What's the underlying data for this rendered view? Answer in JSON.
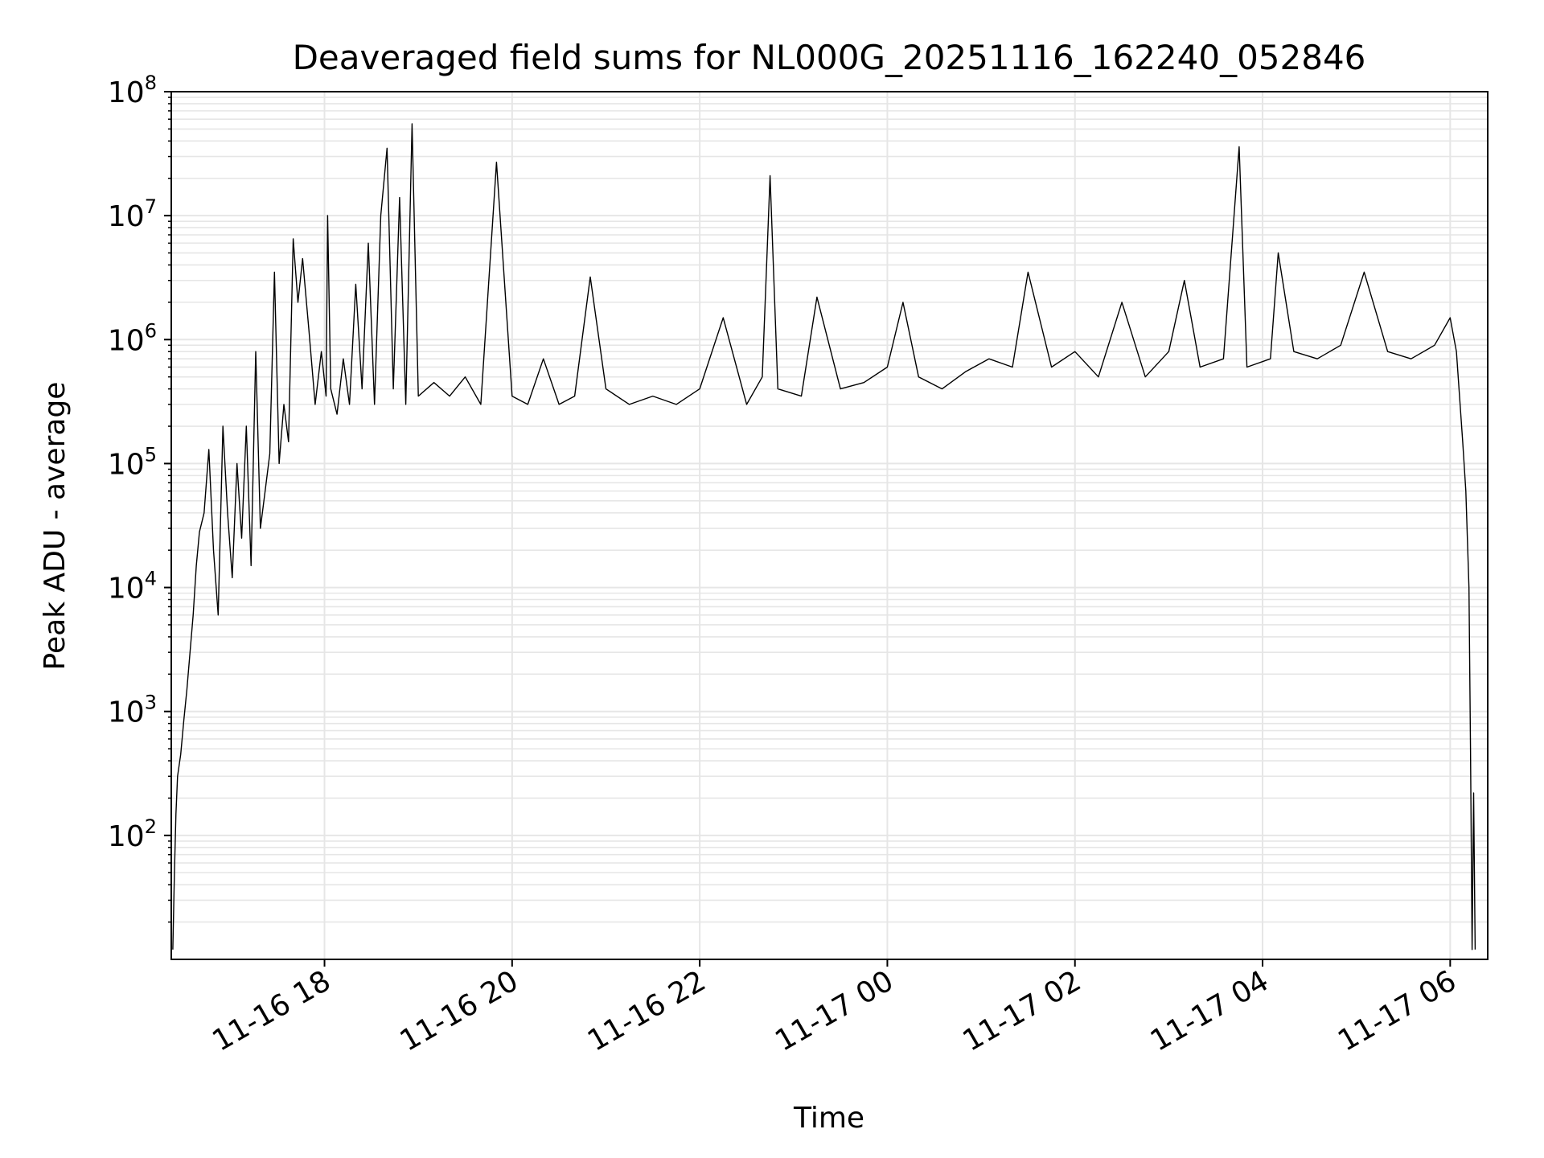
{
  "chart_data": {
    "type": "line",
    "title": "Deaveraged field sums for NL000G_20251116_162240_052846",
    "xlabel": "Time",
    "ylabel": "Peak ADU - average",
    "yscale": "log",
    "ylim": [
      10,
      100000000
    ],
    "xlim": [
      "2025-11-16 16:22",
      "2025-11-17 06:24"
    ],
    "grid": true,
    "x_ticks": [
      {
        "t": "2025-11-16 18:00",
        "label": "11-16 18"
      },
      {
        "t": "2025-11-16 20:00",
        "label": "11-16 20"
      },
      {
        "t": "2025-11-16 22:00",
        "label": "11-16 22"
      },
      {
        "t": "2025-11-17 00:00",
        "label": "11-17 00"
      },
      {
        "t": "2025-11-17 02:00",
        "label": "11-17 02"
      },
      {
        "t": "2025-11-17 04:00",
        "label": "11-17 04"
      },
      {
        "t": "2025-11-17 06:00",
        "label": "11-17 06"
      }
    ],
    "y_ticks": [
      {
        "value": 100,
        "base": "10",
        "exp": "2"
      },
      {
        "value": 1000,
        "base": "10",
        "exp": "3"
      },
      {
        "value": 10000,
        "base": "10",
        "exp": "4"
      },
      {
        "value": 100000,
        "base": "10",
        "exp": "5"
      },
      {
        "value": 1000000,
        "base": "10",
        "exp": "6"
      },
      {
        "value": 10000000,
        "base": "10",
        "exp": "7"
      },
      {
        "value": 100000000,
        "base": "10",
        "exp": "8"
      }
    ],
    "color": "#000000",
    "series": [
      {
        "points": [
          [
            "2025-11-16 16:23",
            12
          ],
          [
            "2025-11-16 16:24",
            50
          ],
          [
            "2025-11-16 16:25",
            150
          ],
          [
            "2025-11-16 16:26",
            300
          ],
          [
            "2025-11-16 16:28",
            450
          ],
          [
            "2025-11-16 16:30",
            850
          ],
          [
            "2025-11-16 16:32",
            1500
          ],
          [
            "2025-11-16 16:34",
            3000
          ],
          [
            "2025-11-16 16:36",
            6000
          ],
          [
            "2025-11-16 16:38",
            15000
          ],
          [
            "2025-11-16 16:40",
            28000
          ],
          [
            "2025-11-16 16:43",
            40000
          ],
          [
            "2025-11-16 16:46",
            130000
          ],
          [
            "2025-11-16 16:49",
            20000
          ],
          [
            "2025-11-16 16:52",
            6000
          ],
          [
            "2025-11-16 16:55",
            200000
          ],
          [
            "2025-11-16 16:58",
            40000
          ],
          [
            "2025-11-16 17:01",
            12000
          ],
          [
            "2025-11-16 17:04",
            100000
          ],
          [
            "2025-11-16 17:07",
            25000
          ],
          [
            "2025-11-16 17:10",
            200000
          ],
          [
            "2025-11-16 17:13",
            15000
          ],
          [
            "2025-11-16 17:16",
            800000
          ],
          [
            "2025-11-16 17:19",
            30000
          ],
          [
            "2025-11-16 17:22",
            60000
          ],
          [
            "2025-11-16 17:25",
            120000
          ],
          [
            "2025-11-16 17:28",
            3500000
          ],
          [
            "2025-11-16 17:31",
            100000
          ],
          [
            "2025-11-16 17:34",
            300000
          ],
          [
            "2025-11-16 17:37",
            150000
          ],
          [
            "2025-11-16 17:40",
            6500000
          ],
          [
            "2025-11-16 17:43",
            2000000
          ],
          [
            "2025-11-16 17:46",
            4500000
          ],
          [
            "2025-11-16 17:50",
            1200000
          ],
          [
            "2025-11-16 17:54",
            300000
          ],
          [
            "2025-11-16 17:58",
            800000
          ],
          [
            "2025-11-16 18:01",
            350000
          ],
          [
            "2025-11-16 18:02",
            10000000
          ],
          [
            "2025-11-16 18:04",
            400000
          ],
          [
            "2025-11-16 18:08",
            250000
          ],
          [
            "2025-11-16 18:12",
            700000
          ],
          [
            "2025-11-16 18:16",
            300000
          ],
          [
            "2025-11-16 18:20",
            2800000
          ],
          [
            "2025-11-16 18:24",
            400000
          ],
          [
            "2025-11-16 18:28",
            6000000
          ],
          [
            "2025-11-16 18:32",
            300000
          ],
          [
            "2025-11-16 18:36",
            10000000
          ],
          [
            "2025-11-16 18:40",
            35000000
          ],
          [
            "2025-11-16 18:44",
            400000
          ],
          [
            "2025-11-16 18:48",
            14000000
          ],
          [
            "2025-11-16 18:52",
            300000
          ],
          [
            "2025-11-16 18:56",
            55000000
          ],
          [
            "2025-11-16 19:00",
            350000
          ],
          [
            "2025-11-16 19:10",
            450000
          ],
          [
            "2025-11-16 19:20",
            350000
          ],
          [
            "2025-11-16 19:30",
            500000
          ],
          [
            "2025-11-16 19:40",
            300000
          ],
          [
            "2025-11-16 19:50",
            27000000
          ],
          [
            "2025-11-16 20:00",
            350000
          ],
          [
            "2025-11-16 20:10",
            300000
          ],
          [
            "2025-11-16 20:20",
            700000
          ],
          [
            "2025-11-16 20:30",
            300000
          ],
          [
            "2025-11-16 20:40",
            350000
          ],
          [
            "2025-11-16 20:50",
            3200000
          ],
          [
            "2025-11-16 21:00",
            400000
          ],
          [
            "2025-11-16 21:15",
            300000
          ],
          [
            "2025-11-16 21:30",
            350000
          ],
          [
            "2025-11-16 21:45",
            300000
          ],
          [
            "2025-11-16 22:00",
            400000
          ],
          [
            "2025-11-16 22:15",
            1500000
          ],
          [
            "2025-11-16 22:30",
            300000
          ],
          [
            "2025-11-16 22:40",
            500000
          ],
          [
            "2025-11-16 22:45",
            21000000
          ],
          [
            "2025-11-16 22:50",
            400000
          ],
          [
            "2025-11-16 23:05",
            350000
          ],
          [
            "2025-11-16 23:15",
            2200000
          ],
          [
            "2025-11-16 23:30",
            400000
          ],
          [
            "2025-11-16 23:45",
            450000
          ],
          [
            "2025-11-17 00:00",
            600000
          ],
          [
            "2025-11-17 00:10",
            2000000
          ],
          [
            "2025-11-17 00:20",
            500000
          ],
          [
            "2025-11-17 00:35",
            400000
          ],
          [
            "2025-11-17 00:50",
            550000
          ],
          [
            "2025-11-17 01:05",
            700000
          ],
          [
            "2025-11-17 01:20",
            600000
          ],
          [
            "2025-11-17 01:30",
            3500000
          ],
          [
            "2025-11-17 01:45",
            600000
          ],
          [
            "2025-11-17 02:00",
            800000
          ],
          [
            "2025-11-17 02:15",
            500000
          ],
          [
            "2025-11-17 02:30",
            2000000
          ],
          [
            "2025-11-17 02:45",
            500000
          ],
          [
            "2025-11-17 03:00",
            800000
          ],
          [
            "2025-11-17 03:10",
            3000000
          ],
          [
            "2025-11-17 03:20",
            600000
          ],
          [
            "2025-11-17 03:35",
            700000
          ],
          [
            "2025-11-17 03:45",
            36000000
          ],
          [
            "2025-11-17 03:50",
            600000
          ],
          [
            "2025-11-17 04:05",
            700000
          ],
          [
            "2025-11-17 04:10",
            5000000
          ],
          [
            "2025-11-17 04:20",
            800000
          ],
          [
            "2025-11-17 04:35",
            700000
          ],
          [
            "2025-11-17 04:50",
            900000
          ],
          [
            "2025-11-17 05:05",
            3500000
          ],
          [
            "2025-11-17 05:20",
            800000
          ],
          [
            "2025-11-17 05:35",
            700000
          ],
          [
            "2025-11-17 05:50",
            900000
          ],
          [
            "2025-11-17 06:00",
            1500000
          ],
          [
            "2025-11-17 06:04",
            800000
          ],
          [
            "2025-11-17 06:08",
            150000
          ],
          [
            "2025-11-17 06:10",
            60000
          ],
          [
            "2025-11-17 06:12",
            10000
          ],
          [
            "2025-11-17 06:13",
            500
          ],
          [
            "2025-11-17 06:14",
            12
          ],
          [
            "2025-11-17 06:15",
            220
          ],
          [
            "2025-11-17 06:16",
            12
          ]
        ]
      }
    ]
  }
}
